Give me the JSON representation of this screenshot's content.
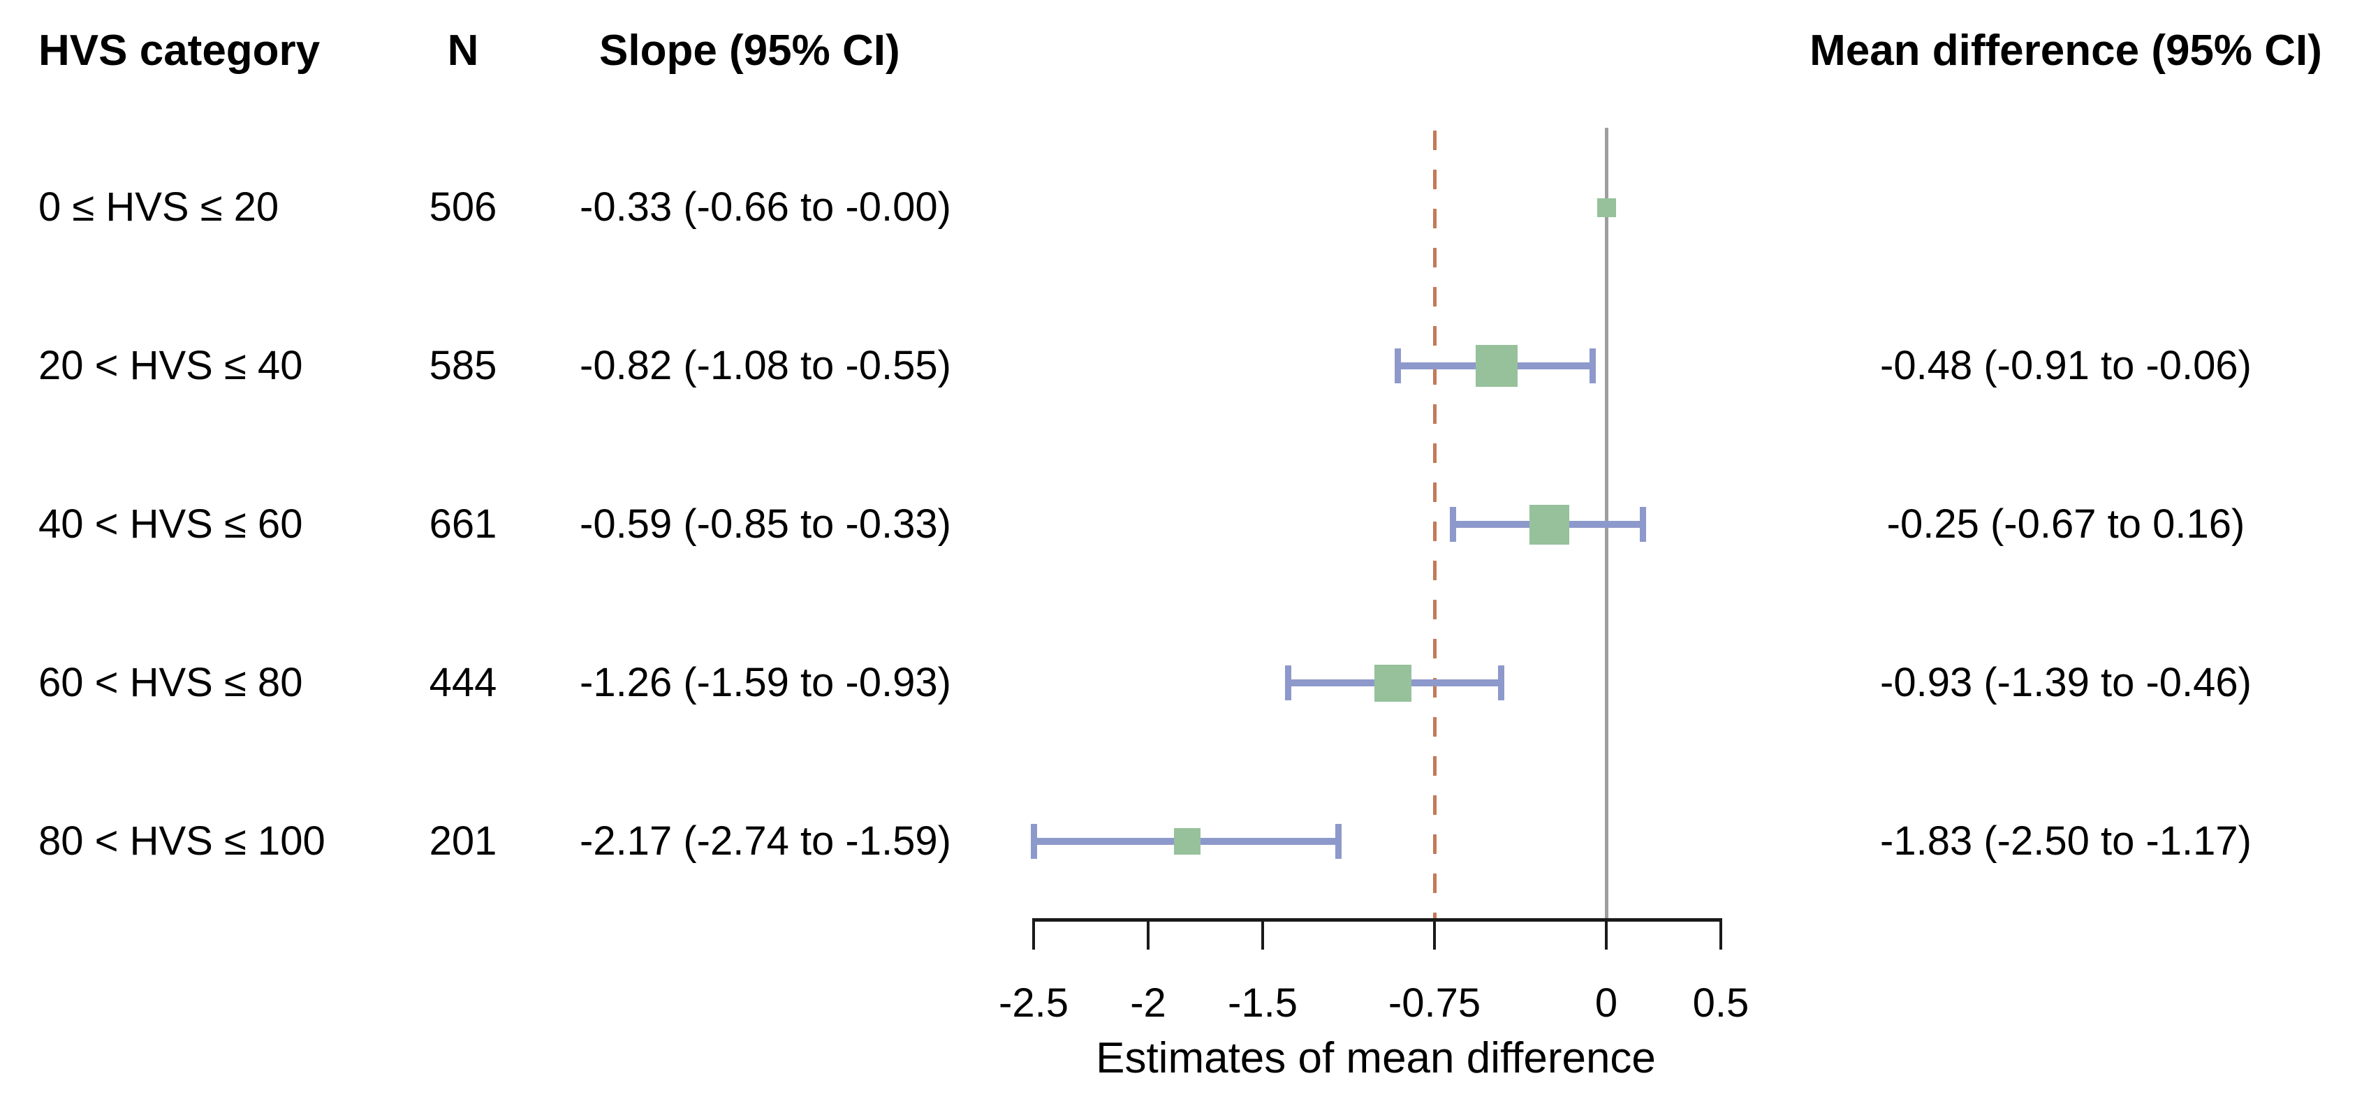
{
  "figure": {
    "columns": {
      "category_header": "HVS category",
      "n_header": "N",
      "slope_header": "Slope (95% CI)",
      "mean_diff_header": "Mean difference (95% CI)"
    }
  },
  "chart_data": {
    "type": "forest",
    "title": "",
    "xlabel": "Estimates of mean difference",
    "x_axis": {
      "range": [
        -2.5,
        0.5
      ],
      "ticks": [
        {
          "value": -2.5,
          "label": "-2.5"
        },
        {
          "value": -2,
          "label": "-2"
        },
        {
          "value": -1.5,
          "label": "-1.5"
        },
        {
          "value": -0.75,
          "label": "-0.75"
        },
        {
          "value": 0,
          "label": "0"
        },
        {
          "value": 0.5,
          "label": "0.5"
        }
      ]
    },
    "reference_lines": [
      {
        "value": 0,
        "style": "solid",
        "color": "#9e9e9e"
      },
      {
        "value": -0.75,
        "style": "dashed",
        "color": "#c47a58"
      }
    ],
    "rows": [
      {
        "category": "0 ≤ HVS ≤ 20",
        "n": "506",
        "slope_ci": "-0.33 (-0.66 to -0.00)",
        "mean": 0,
        "lo": 0,
        "hi": 0,
        "has_ci": false,
        "marker_size": 27,
        "mean_diff_ci": ""
      },
      {
        "category": "20 < HVS ≤ 40",
        "n": "585",
        "slope_ci": "-0.82 (-1.08 to -0.55)",
        "mean": -0.48,
        "lo": -0.91,
        "hi": -0.06,
        "has_ci": true,
        "marker_size": 60,
        "mean_diff_ci": "-0.48 (-0.91 to -0.06)"
      },
      {
        "category": "40 < HVS ≤ 60",
        "n": "661",
        "slope_ci": "-0.59 (-0.85 to -0.33)",
        "mean": -0.25,
        "lo": -0.67,
        "hi": 0.16,
        "has_ci": true,
        "marker_size": 57,
        "mean_diff_ci": "-0.25 (-0.67 to 0.16)"
      },
      {
        "category": "60 < HVS ≤ 80",
        "n": "444",
        "slope_ci": "-1.26 (-1.59 to -0.93)",
        "mean": -0.93,
        "lo": -1.39,
        "hi": -0.46,
        "has_ci": true,
        "marker_size": 53,
        "mean_diff_ci": "-0.93 (-1.39 to -0.46)"
      },
      {
        "category": "80 < HVS ≤ 100",
        "n": "201",
        "slope_ci": "-2.17 (-2.74 to -1.59)",
        "mean": -1.83,
        "lo": -2.5,
        "hi": -1.17,
        "has_ci": true,
        "marker_size": 38,
        "mean_diff_ci": "-1.83 (-2.50 to -1.17)"
      }
    ],
    "colors": {
      "marker": "#96c19b",
      "ci": "#8d99cb",
      "dashed_ref": "#c47a58",
      "zero_line": "#9e9e9e",
      "axis": "#1a1a1a"
    }
  }
}
